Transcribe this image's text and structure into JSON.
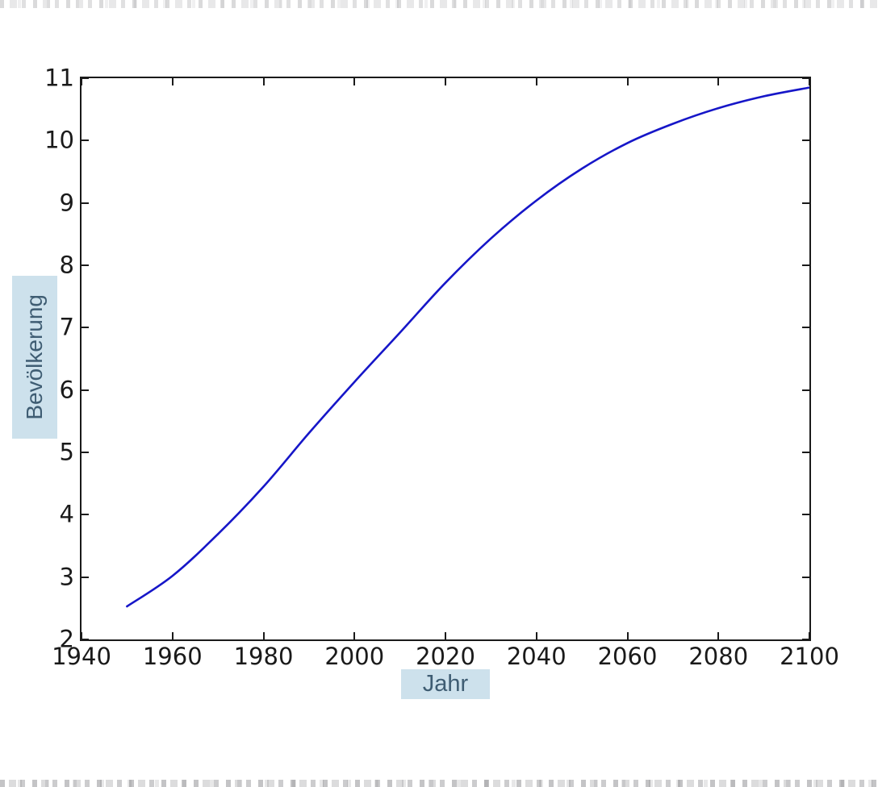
{
  "figure": {
    "background": "#ffffff",
    "spine_color": "#1a1a1a",
    "tick_label_color": "#1a1a1a",
    "axis_label_bg": "#cde1ec",
    "axis_label_text_color": "#3f5d73"
  },
  "chart_data": {
    "type": "line",
    "title": "",
    "xlabel": "Jahr",
    "ylabel": "Bevölkerung",
    "x": [
      1950,
      1960,
      1970,
      1980,
      1990,
      2000,
      2010,
      2020,
      2030,
      2040,
      2050,
      2060,
      2070,
      2080,
      2090,
      2100
    ],
    "values": [
      2.53,
      3.02,
      3.69,
      4.45,
      5.31,
      6.13,
      6.92,
      7.72,
      8.43,
      9.04,
      9.55,
      9.96,
      10.27,
      10.52,
      10.71,
      10.85
    ],
    "xlim": [
      1940,
      2100
    ],
    "ylim": [
      2,
      11
    ],
    "x_ticks": [
      "1940",
      "1960",
      "1980",
      "2000",
      "2020",
      "2040",
      "2060",
      "2080",
      "2100"
    ],
    "y_ticks": [
      "2",
      "3",
      "4",
      "5",
      "6",
      "7",
      "8",
      "9",
      "10",
      "11"
    ],
    "grid": false,
    "legend": "none",
    "line_color": "#1616c8",
    "line_width": 2.6
  }
}
